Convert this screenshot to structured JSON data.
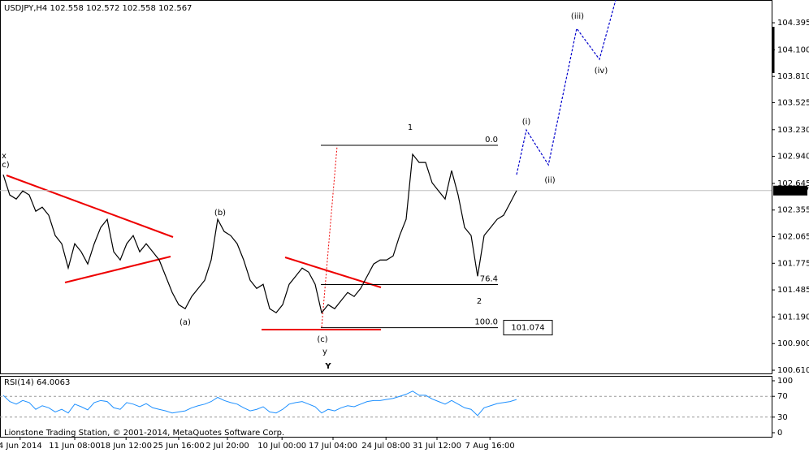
{
  "chart_data": {
    "type": "line",
    "title": "USDJPY,H4  102.558 102.572 102.558 102.567",
    "footer": "Lionstone Trading Station, © 2001-2014, MetaQuotes Software Corp.",
    "color": "#000000",
    "values": [
      102.74,
      102.519,
      102.475,
      102.563,
      102.519,
      102.342,
      102.386,
      102.298,
      102.077,
      101.988,
      101.723,
      101.988,
      101.9,
      101.767,
      101.988,
      102.165,
      102.254,
      101.9,
      101.811,
      101.988,
      102.077,
      101.9,
      101.988,
      101.9,
      101.811,
      101.634,
      101.457,
      101.324,
      101.28,
      101.413,
      101.501,
      101.59,
      101.811,
      102.254,
      102.121,
      102.077,
      101.988,
      101.811,
      101.59,
      101.501,
      101.546,
      101.28,
      101.236,
      101.324,
      101.546,
      101.634,
      101.723,
      101.678,
      101.546,
      101.236,
      101.324,
      101.28,
      101.369,
      101.457,
      101.413,
      101.501,
      101.634,
      101.767,
      101.811,
      101.811,
      101.855,
      102.077,
      102.254,
      102.962,
      102.873,
      102.873,
      102.652,
      102.563,
      102.475,
      102.785,
      102.519,
      102.165,
      102.077,
      101.634,
      102.077,
      102.165,
      102.254,
      102.298,
      102.431,
      102.567
    ],
    "last_price": 102.567,
    "xlim": [
      -0.5,
      118.25
    ],
    "xticks": [
      {
        "value": 2.6,
        "label": "4 Jun 2014"
      },
      {
        "value": 11,
        "label": "11 Jun 08:00"
      },
      {
        "value": 18.9,
        "label": "18 Jun 12:00"
      },
      {
        "value": 27,
        "label": "25 Jun 16:00"
      },
      {
        "value": 34.5,
        "label": "2 Jul 20:00"
      },
      {
        "value": 42.9,
        "label": "10 Jul 00:00"
      },
      {
        "value": 50.75,
        "label": "17 Jul 04:00"
      },
      {
        "value": 58.9,
        "label": "24 Jul 08:00"
      },
      {
        "value": 66.75,
        "label": "31 Jul 12:00"
      },
      {
        "value": 74.9,
        "label": "7 Aug 16:00"
      }
    ],
    "ylim": [
      100.575,
      104.643
    ],
    "yticks": [
      104.395,
      {
        "value": 104.1,
        "label": "104.100"
      },
      {
        "value": 103.81,
        "label": "103.810"
      },
      103.525,
      {
        "value": 103.23,
        "label": "103.230"
      },
      {
        "value": 102.94,
        "label": "102.940"
      },
      102.645,
      102.355,
      102.065,
      101.775,
      101.485,
      {
        "value": 101.19,
        "label": "101.190"
      },
      {
        "value": 100.9,
        "label": "100.900"
      },
      {
        "value": 100.61,
        "label": "100.610"
      }
    ],
    "projection": {
      "color": "#0000cc",
      "x": [
        79,
        80.5,
        83.9,
        88.25,
        91.75,
        94.25
      ],
      "values": [
        102.74,
        103.227,
        102.847,
        104.333,
        103.997,
        104.643
      ]
    },
    "fib": {
      "levels": [
        "0.0",
        "76.4",
        "100.0"
      ],
      "level_prices": [
        103.06,
        101.543,
        101.074
      ],
      "low": 101.074
    },
    "wave_labels": [
      "x",
      "c)",
      "(a)",
      "(b)",
      "(c)",
      "y",
      "Y",
      "1",
      "2",
      "(i)",
      "(ii)",
      "(iii)",
      "(iv)"
    ],
    "rsi": {
      "title": "RSI(14) 64.0063",
      "color": "#1e90ff",
      "ylim": [
        -7.8,
        109.4
      ],
      "yticks": [
        100,
        70,
        30,
        0
      ],
      "levels": [
        70,
        30
      ],
      "values": [
        72,
        60,
        55,
        62,
        58,
        45,
        52,
        48,
        40,
        45,
        38,
        55,
        50,
        44,
        58,
        62,
        60,
        48,
        45,
        58,
        55,
        50,
        56,
        48,
        45,
        42,
        38,
        40,
        42,
        48,
        52,
        55,
        60,
        68,
        62,
        58,
        55,
        48,
        42,
        45,
        50,
        40,
        38,
        45,
        55,
        58,
        60,
        55,
        50,
        38,
        45,
        42,
        48,
        52,
        50,
        55,
        60,
        62,
        62,
        64,
        66,
        70,
        74,
        80,
        72,
        72,
        65,
        60,
        55,
        62,
        55,
        48,
        45,
        33,
        48,
        52,
        56,
        58,
        60,
        64.0063
      ]
    }
  }
}
